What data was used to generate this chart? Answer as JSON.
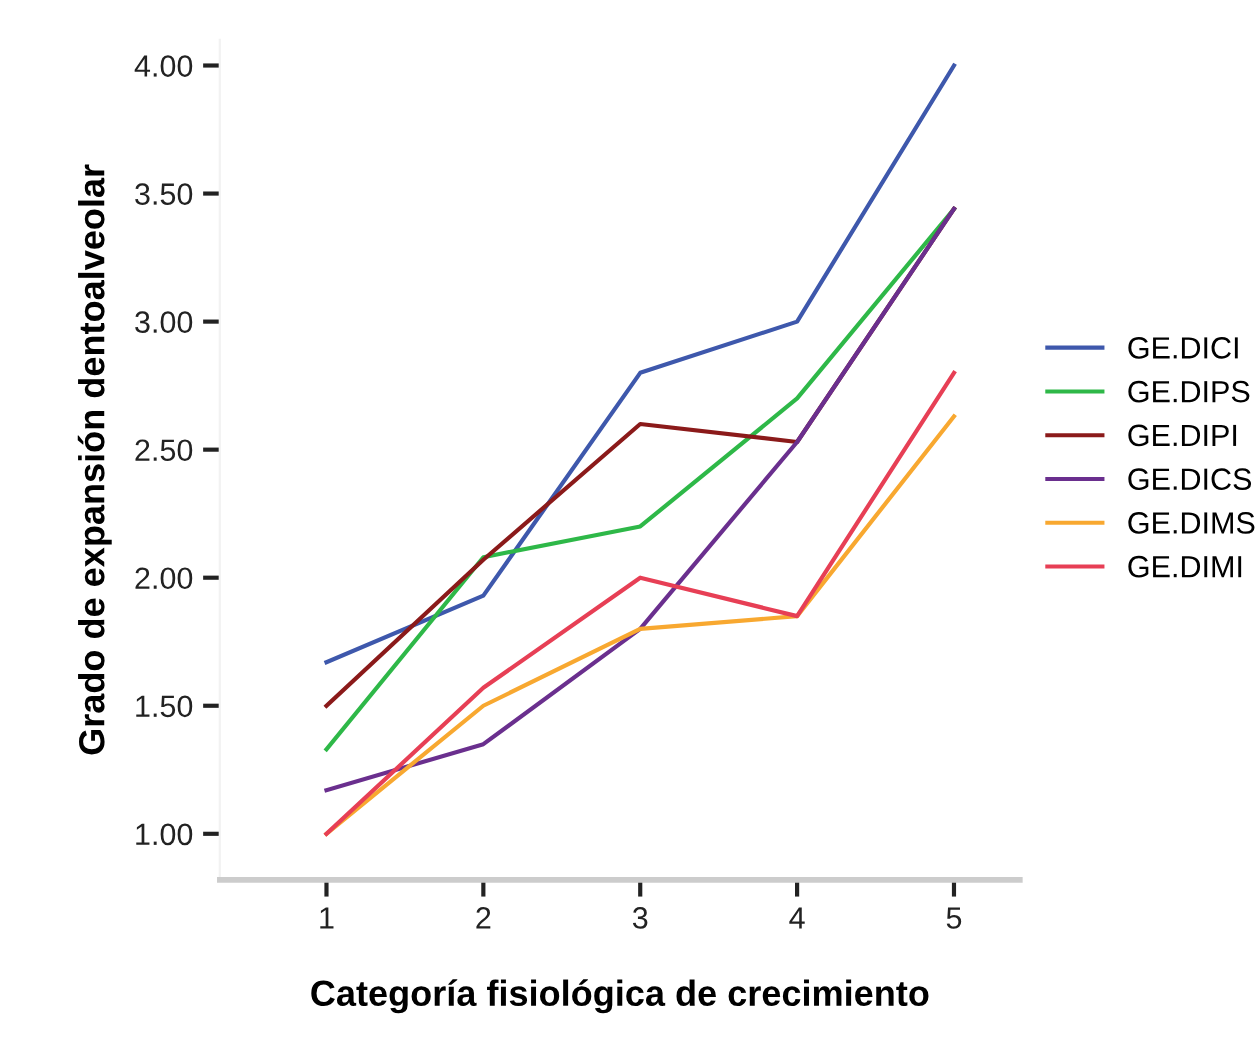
{
  "chart_data": {
    "type": "line",
    "xlabel": "Categoría fisiológica de crecimiento",
    "ylabel": "Grado de expansión dentoalveolar",
    "x": [
      1,
      2,
      3,
      4,
      5
    ],
    "xlim": [
      0.32,
      5.42
    ],
    "xticks": [
      1,
      2,
      3,
      4,
      5
    ],
    "ylim": [
      0.82,
      4.1
    ],
    "yticks": [
      {
        "value": 1,
        "label": "1.00"
      },
      {
        "value": 1.5,
        "label": "1.50"
      },
      {
        "value": 2,
        "label": "2.00"
      },
      {
        "value": 2.5,
        "label": "2.50"
      },
      {
        "value": 3,
        "label": "3.00"
      },
      {
        "value": 3.5,
        "label": "3.50"
      },
      {
        "value": 4,
        "label": "4.00"
      }
    ],
    "grid": false,
    "legend": "right",
    "marker": "none",
    "line_style": "solid",
    "series": [
      {
        "name": "GE.DICI",
        "color": "#3e58ac",
        "values": [
          1.67,
          1.93,
          2.8,
          3.0,
          4.0
        ]
      },
      {
        "name": "GE.DIPS",
        "color": "#2eb848",
        "values": [
          1.33,
          2.08,
          2.2,
          2.7,
          3.44
        ]
      },
      {
        "name": "GE.DIPI",
        "color": "#8b1a1a",
        "values": [
          1.5,
          2.07,
          2.6,
          2.53,
          3.44
        ]
      },
      {
        "name": "GE.DICS",
        "color": "#6a2f8e",
        "values": [
          1.17,
          1.35,
          1.8,
          2.53,
          3.44
        ]
      },
      {
        "name": "GE.DIMS",
        "color": "#f8a830",
        "values": [
          1.0,
          1.5,
          1.8,
          1.85,
          2.63
        ]
      },
      {
        "name": "GE.DIMI",
        "color": "#e73f55",
        "values": [
          1.0,
          1.57,
          2.0,
          1.85,
          2.8
        ]
      }
    ]
  }
}
